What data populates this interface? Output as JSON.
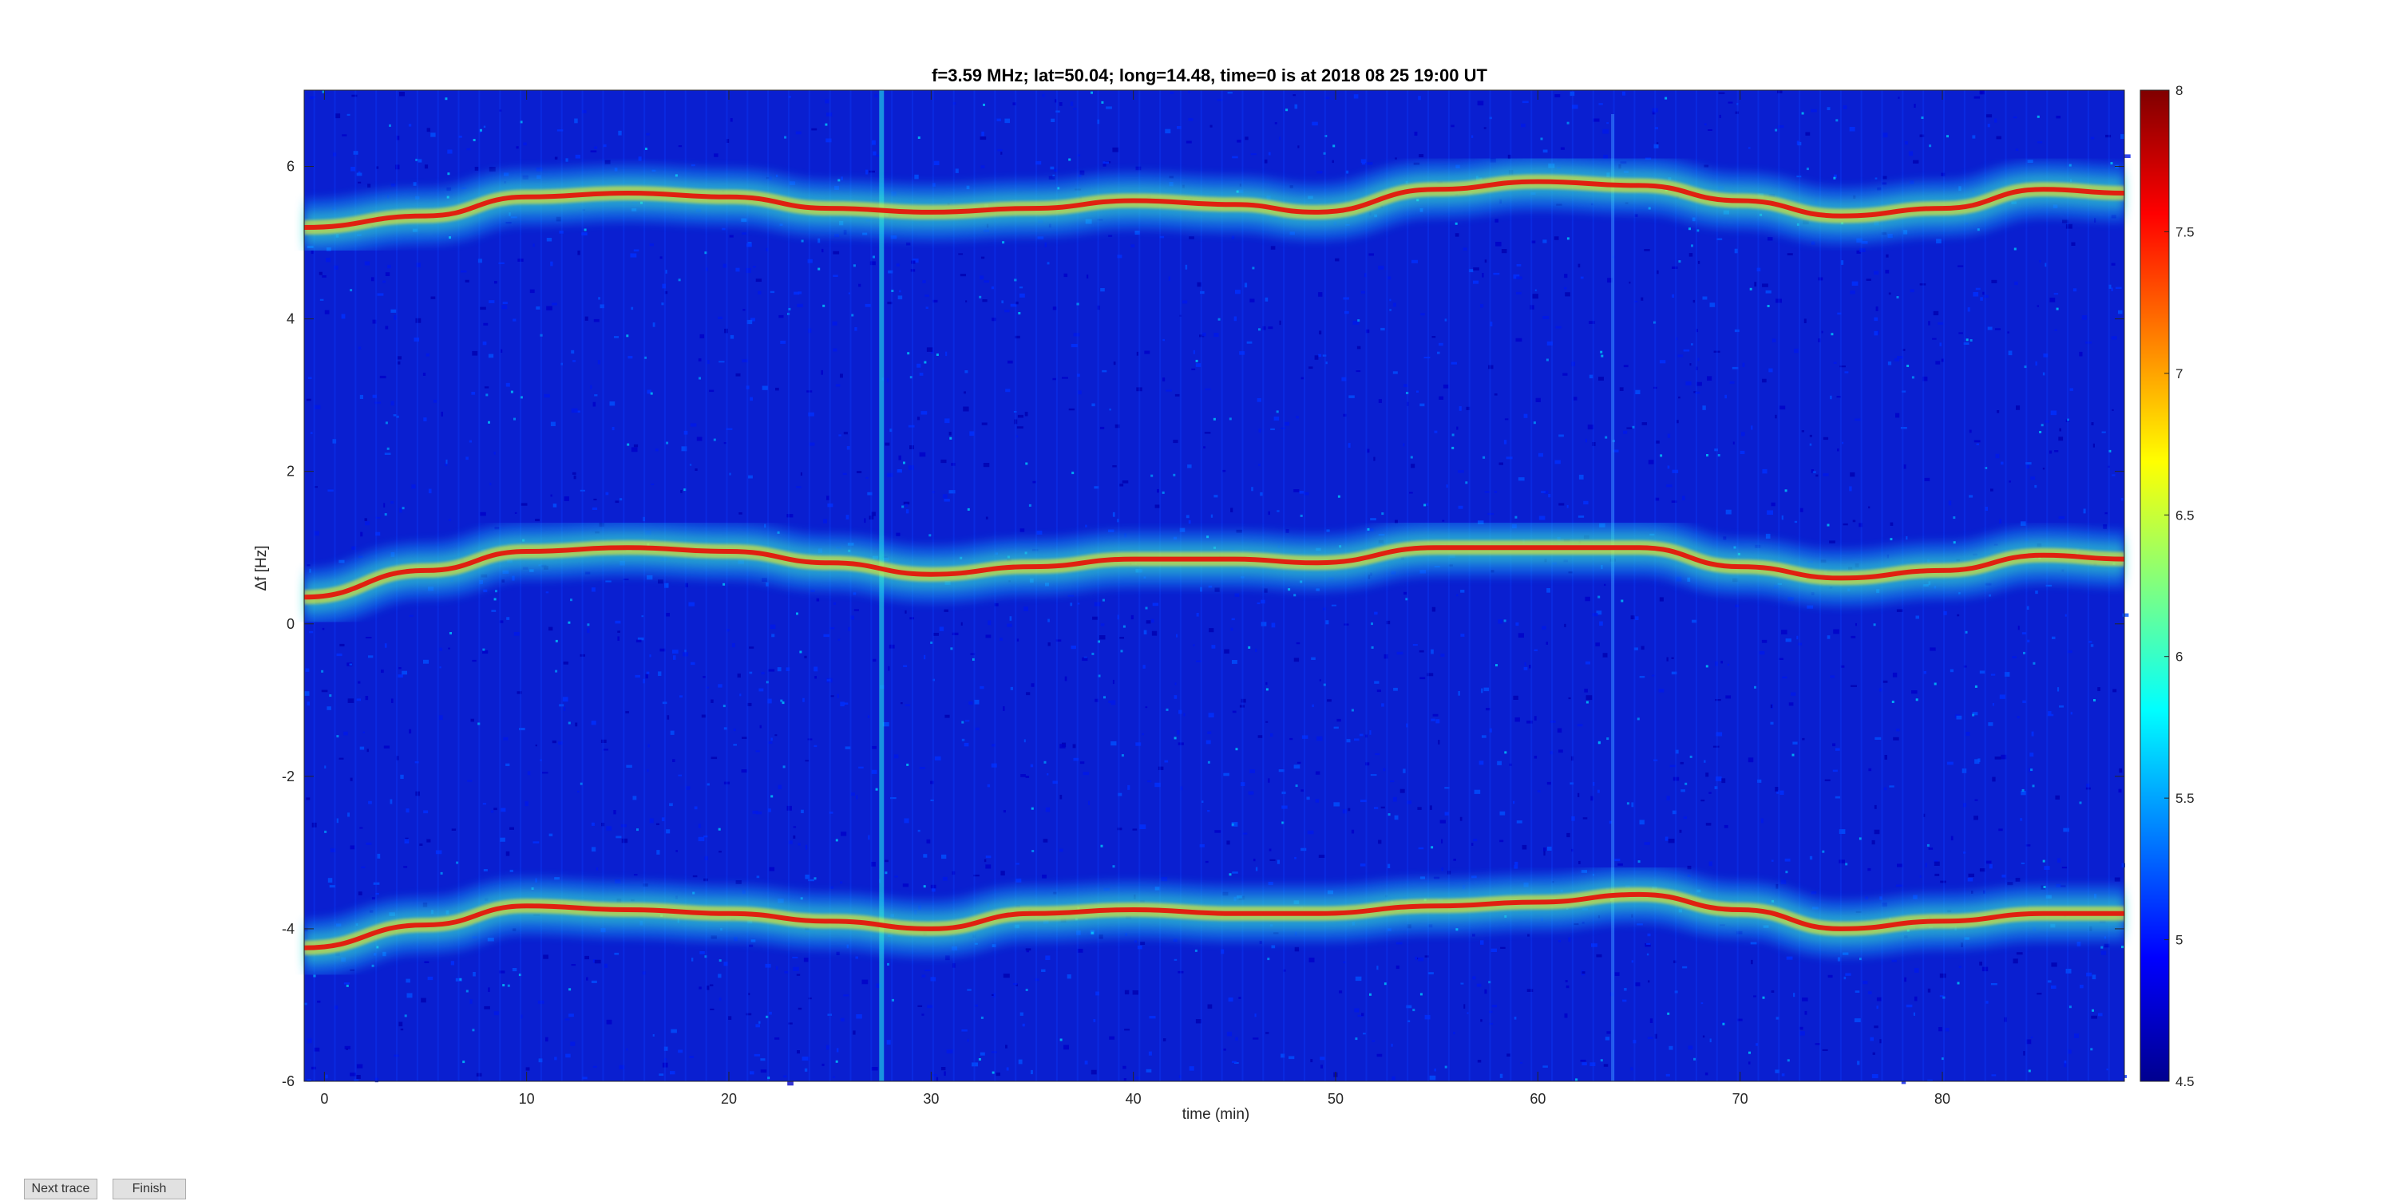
{
  "figure": {
    "next_label": "Next trace",
    "finish_label": "Finish"
  },
  "chart_data": {
    "type": "heatmap",
    "title": "f=3.59 MHz;  lat=50.04; long=14.48, time=0 is at 2018 08 25 19:00 UT",
    "xlabel": "time (min)",
    "ylabel": "Δf [Hz]",
    "xlim": [
      -1,
      89
    ],
    "ylim": [
      -6,
      7
    ],
    "xticks": [
      0,
      10,
      20,
      30,
      40,
      50,
      60,
      70,
      80
    ],
    "yticks": [
      -6,
      -4,
      -2,
      0,
      2,
      4,
      6
    ],
    "colorbar": {
      "clim": [
        4.5,
        8
      ],
      "ticks": [
        4.5,
        5,
        5.5,
        6,
        6.5,
        7,
        7.5,
        8
      ],
      "tick_labels": [
        "4.5",
        "5",
        "5.5",
        "6",
        "6.5",
        "7",
        "7.5",
        "8"
      ]
    },
    "colormap": "jet",
    "traces": [
      {
        "x": [
          -1,
          5,
          10,
          15,
          20,
          25,
          30,
          35,
          40,
          45,
          49,
          55,
          60,
          65,
          70,
          75,
          80,
          85,
          89
        ],
        "y": [
          5.2,
          5.35,
          5.6,
          5.65,
          5.6,
          5.45,
          5.4,
          5.45,
          5.55,
          5.5,
          5.4,
          5.7,
          5.8,
          5.75,
          5.55,
          5.35,
          5.45,
          5.7,
          5.65
        ]
      },
      {
        "x": [
          -1,
          5,
          10,
          15,
          20,
          25,
          30,
          35,
          40,
          45,
          49,
          55,
          60,
          65,
          70,
          75,
          80,
          85,
          89
        ],
        "y": [
          0.35,
          0.7,
          0.95,
          1.0,
          0.95,
          0.8,
          0.65,
          0.75,
          0.85,
          0.85,
          0.8,
          1.0,
          1.0,
          1.0,
          0.75,
          0.6,
          0.7,
          0.9,
          0.85
        ]
      },
      {
        "x": [
          -1,
          5,
          10,
          15,
          20,
          25,
          30,
          35,
          40,
          45,
          49,
          55,
          60,
          65,
          70,
          75,
          80,
          85,
          89
        ],
        "y": [
          -4.25,
          -3.95,
          -3.7,
          -3.75,
          -3.8,
          -3.9,
          -4.0,
          -3.8,
          -3.75,
          -3.8,
          -3.8,
          -3.7,
          -3.65,
          -3.55,
          -3.75,
          -4.0,
          -3.9,
          -3.8,
          -3.8
        ]
      }
    ]
  }
}
